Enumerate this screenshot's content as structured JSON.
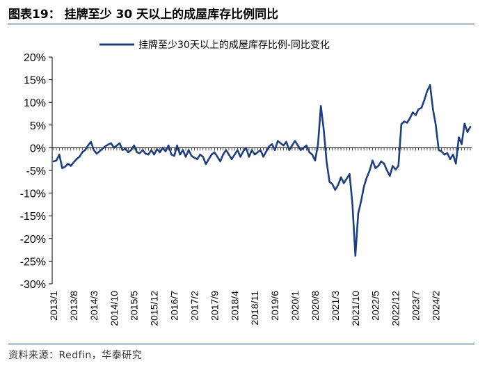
{
  "figure": {
    "title": "图表19：  挂牌至少 30 天以上的成屋库存比例同比",
    "source": "资料来源：Redfin，华泰研究"
  },
  "chart_data": {
    "type": "line",
    "title": "",
    "xlabel": "",
    "ylabel": "",
    "ylim": [
      -30,
      20
    ],
    "y_ticks": [
      20,
      15,
      10,
      5,
      0,
      -5,
      -10,
      -15,
      -20,
      -25,
      -30
    ],
    "y_tick_labels": [
      "20%",
      "15%",
      "10%",
      "5%",
      "0%",
      "-5%",
      "-10%",
      "-15%",
      "-20%",
      "-25%",
      "-30%"
    ],
    "x_tick_labels": [
      "2013/1",
      "2013/8",
      "2014/3",
      "2014/10",
      "2015/5",
      "2015/12",
      "2016/7",
      "2017/2",
      "2017/9",
      "2018/4",
      "2018/11",
      "2019/6",
      "2020/1",
      "2020/8",
      "2021/3",
      "2021/10",
      "2022/5",
      "2022/12",
      "2023/7",
      "2024/2"
    ],
    "start_month": "2013/1",
    "legend": {
      "position": "top-center"
    },
    "colors": {
      "series": "#1f3f78",
      "axis": "#000000",
      "rule": "#1f3f78"
    },
    "series": [
      {
        "name": "挂牌至少30天以上的成屋库存比例-同比变化",
        "values": [
          -3.0,
          -2.8,
          -1.5,
          -4.5,
          -4.2,
          -3.5,
          -4.0,
          -3.2,
          -2.5,
          -2.0,
          -1.0,
          -0.5,
          0.5,
          1.3,
          -0.5,
          -1.3,
          -0.8,
          -0.2,
          0.3,
          0.7,
          1.0,
          0.0,
          0.5,
          1.0,
          -0.5,
          -0.2,
          -1.0,
          -0.5,
          0.5,
          -1.0,
          -1.2,
          -0.5,
          -1.3,
          -1.5,
          -0.5,
          -1.5,
          -0.3,
          -1.0,
          0.0,
          -0.8,
          0.5,
          -1.5,
          -1.8,
          0.5,
          -1.5,
          -0.5,
          -2.0,
          -0.5,
          -1.8,
          -2.2,
          -2.5,
          -1.5,
          -2.0,
          -3.6,
          -2.5,
          -1.5,
          -1.0,
          -2.0,
          -3.0,
          -1.5,
          -0.5,
          -1.5,
          -2.5,
          -1.5,
          -0.5,
          -2.0,
          -0.8,
          0.0,
          -2.0,
          -0.5,
          -1.5,
          -1.0,
          -0.5,
          -2.0,
          -0.8,
          0.3,
          0.8,
          -0.5,
          1.5,
          1.0,
          0.5,
          1.3,
          -0.5,
          0.5,
          1.5,
          0.5,
          -0.5,
          0.0,
          0.5,
          -1.0,
          -1.5,
          -2.8,
          0.8,
          9.2,
          4.0,
          -3.0,
          -7.5,
          -8.0,
          -9.3,
          -8.2,
          -6.5,
          -7.8,
          -6.8,
          -5.8,
          -12.5,
          -23.8,
          -14.5,
          -11.8,
          -8.5,
          -6.5,
          -5.0,
          -2.8,
          -4.5,
          -4.0,
          -3.0,
          -3.5,
          -5.0,
          -6.2,
          -4.0,
          -4.8,
          -4.0,
          5.2,
          5.8,
          5.5,
          6.5,
          7.8,
          7.2,
          8.5,
          8.8,
          10.5,
          12.5,
          13.8,
          8.5,
          5.0,
          -0.5,
          -0.8,
          -1.5,
          -1.2,
          -2.5,
          -1.5,
          -3.5,
          2.3,
          0.8,
          5.3,
          3.5,
          4.6
        ]
      }
    ]
  }
}
